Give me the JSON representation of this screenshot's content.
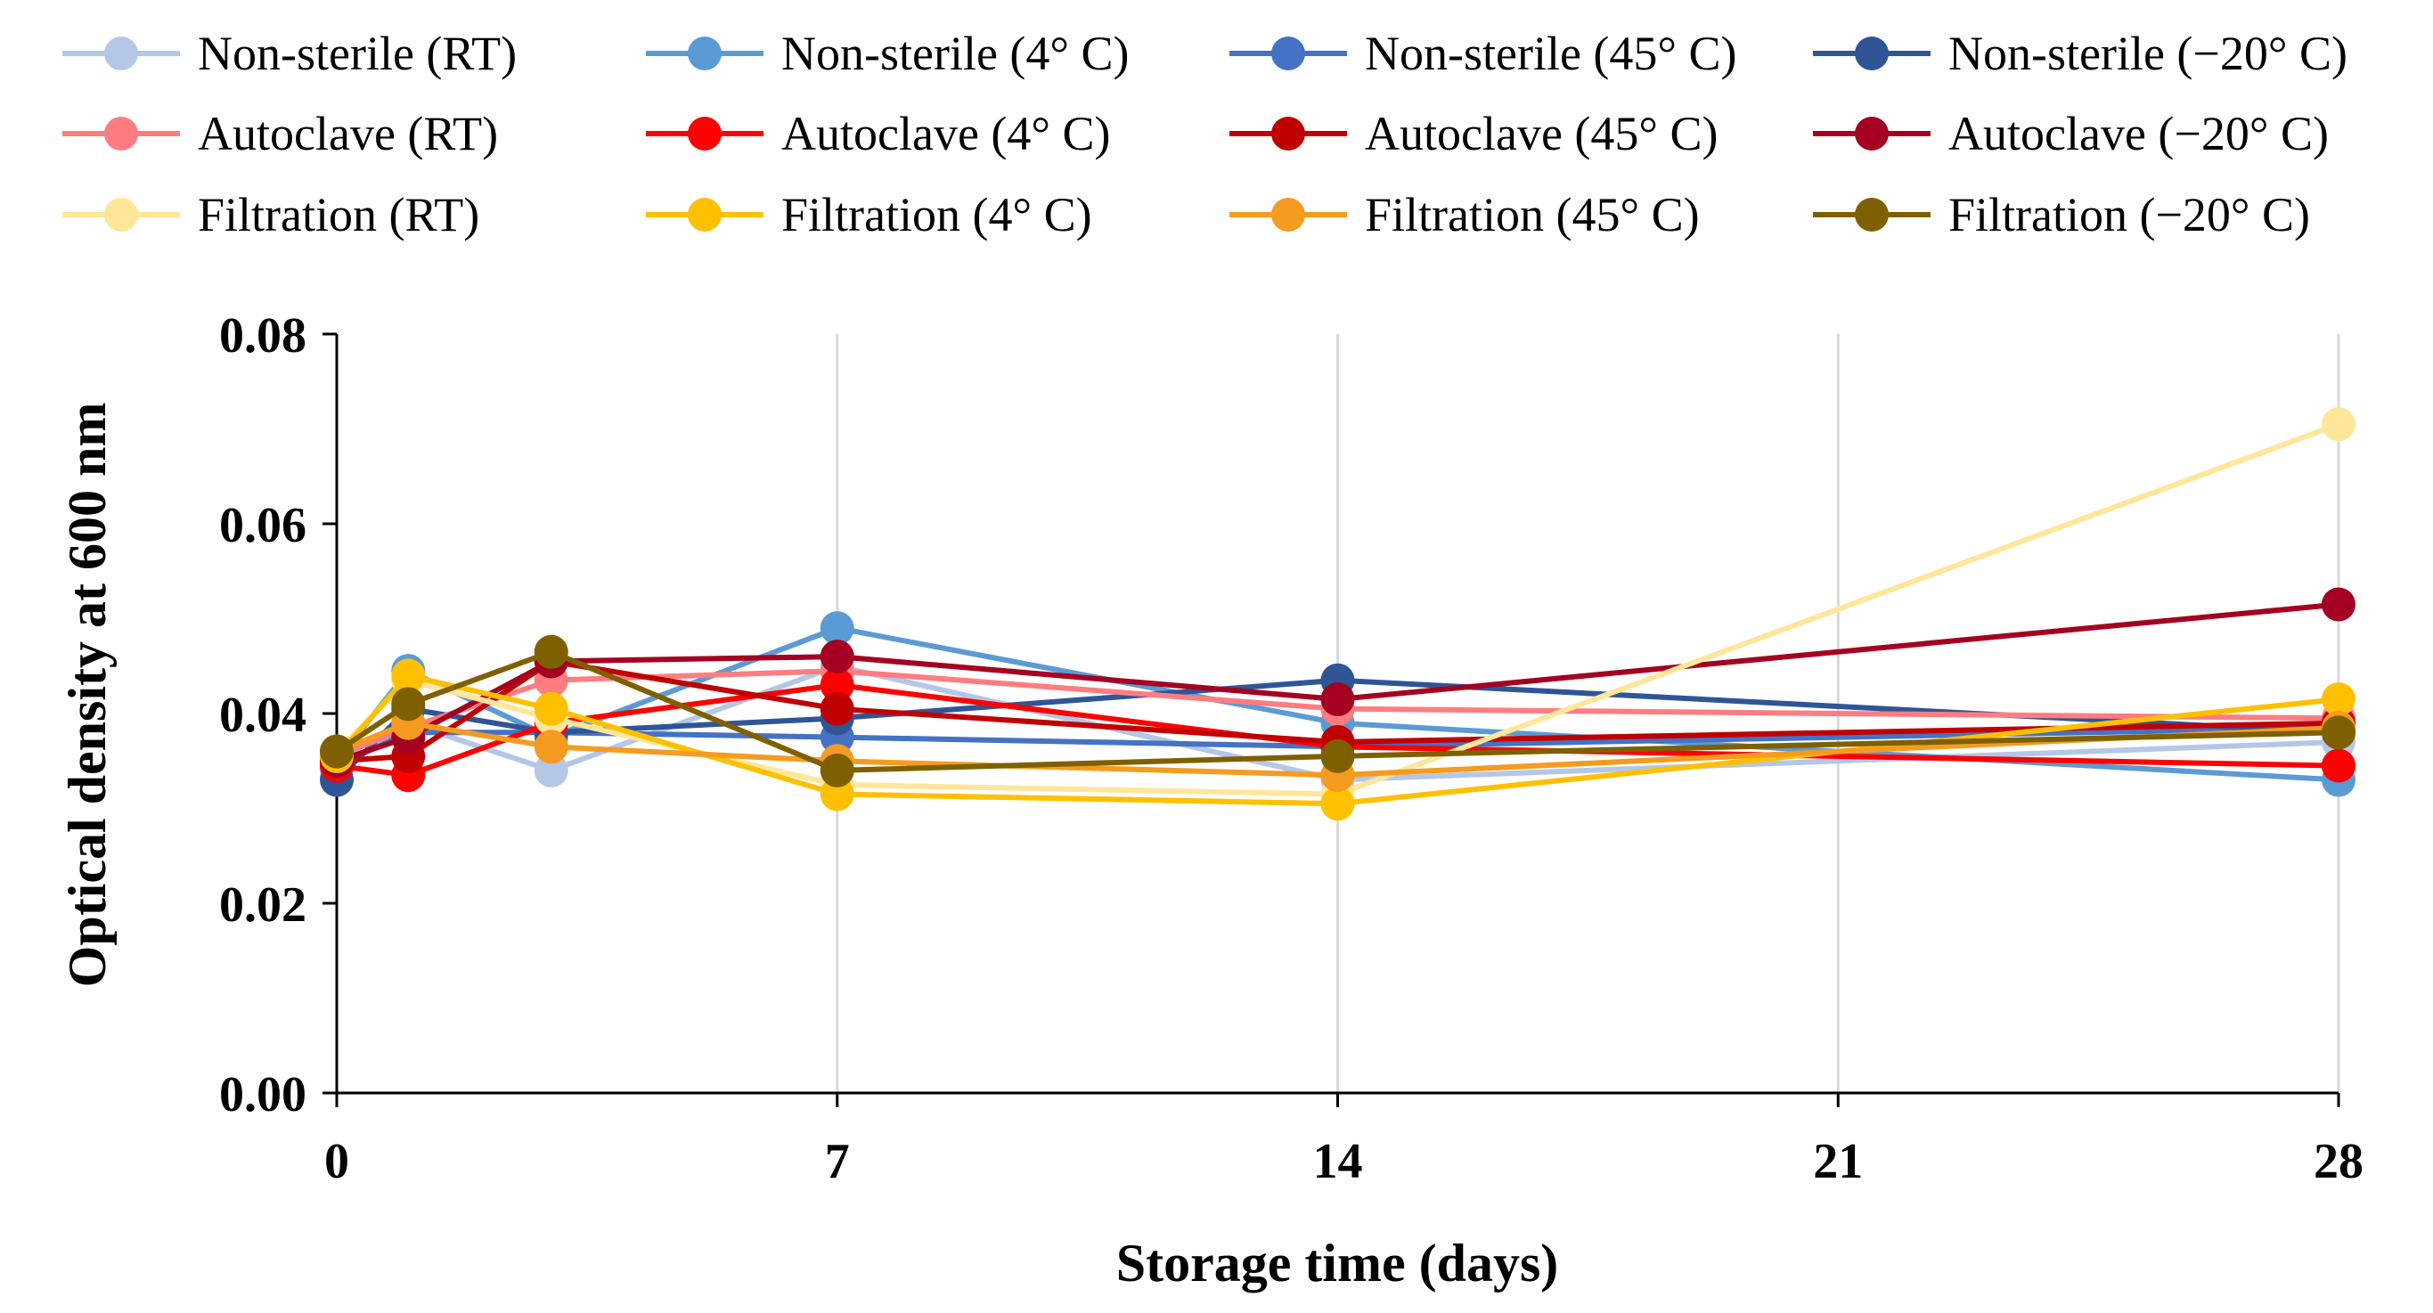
{
  "chart_data": {
    "type": "line",
    "title": "",
    "xlabel": "Storage time (days)",
    "ylabel": "Optical density at 600 nm",
    "x": [
      0,
      1,
      3,
      7,
      14,
      28
    ],
    "xticks": [
      0,
      7,
      14,
      21,
      28
    ],
    "xtick_labels": [
      "0",
      "7",
      "14",
      "21",
      "28"
    ],
    "yticks": [
      0.0,
      0.02,
      0.04,
      0.06,
      0.08
    ],
    "ytick_labels": [
      "0.00",
      "0.02",
      "0.04",
      "0.06",
      "0.08"
    ],
    "xlim": [
      0,
      28
    ],
    "ylim": [
      0,
      0.08
    ],
    "grid": "vertical",
    "legend_position": "top",
    "series": [
      {
        "name": "Non-sterile (RT)",
        "color": "#b4c7e7",
        "values": [
          0.034,
          0.039,
          0.034,
          0.045,
          0.033,
          0.037
        ]
      },
      {
        "name": "Non-sterile (4° C)",
        "color": "#5b9bd5",
        "values": [
          0.035,
          0.0445,
          0.0375,
          0.049,
          0.039,
          0.033
        ]
      },
      {
        "name": "Non-sterile (45° C)",
        "color": "#4472c4",
        "values": [
          0.0345,
          0.038,
          0.038,
          0.0375,
          0.0365,
          0.0385
        ]
      },
      {
        "name": "Non-sterile (−20° C)",
        "color": "#2f5597",
        "values": [
          0.033,
          0.0405,
          0.038,
          0.0395,
          0.0435,
          0.038
        ]
      },
      {
        "name": "Autoclave (RT)",
        "color": "#ff7c80",
        "values": [
          0.0355,
          0.0385,
          0.0435,
          0.0445,
          0.0405,
          0.0395
        ]
      },
      {
        "name": "Autoclave (4° C)",
        "color": "#ff0000",
        "values": [
          0.0345,
          0.0335,
          0.039,
          0.043,
          0.0365,
          0.0345
        ]
      },
      {
        "name": "Autoclave (45° C)",
        "color": "#c00000",
        "values": [
          0.035,
          0.0355,
          0.0455,
          0.0405,
          0.037,
          0.039
        ]
      },
      {
        "name": "Autoclave (−20° C)",
        "color": "#a50021",
        "values": [
          0.035,
          0.0375,
          0.0455,
          0.046,
          0.0415,
          0.0515
        ]
      },
      {
        "name": "Filtration (RT)",
        "color": "#ffe699",
        "values": [
          0.036,
          0.0435,
          0.0395,
          0.0325,
          0.0315,
          0.0705
        ]
      },
      {
        "name": "Filtration (4° C)",
        "color": "#ffc000",
        "values": [
          0.0355,
          0.044,
          0.0405,
          0.0315,
          0.0305,
          0.0415
        ]
      },
      {
        "name": "Filtration (45° C)",
        "color": "#f59b1f",
        "values": [
          0.036,
          0.039,
          0.0365,
          0.035,
          0.0335,
          0.0385
        ]
      },
      {
        "name": "Filtration (−20° C)",
        "color": "#7f6000",
        "values": [
          0.036,
          0.041,
          0.0465,
          0.034,
          0.0355,
          0.038
        ]
      }
    ]
  }
}
